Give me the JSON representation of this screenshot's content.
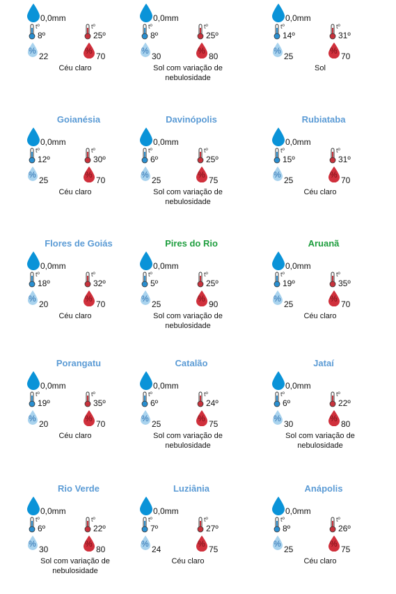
{
  "icons": {
    "temperature": "tº",
    "humidity": "%"
  },
  "cards": [
    {
      "rain": "0,0mm",
      "min_temp": "8º",
      "max_temp": "25º",
      "min_humidity": "22",
      "max_humidity": "70",
      "condition": "Céu claro"
    },
    {
      "rain": "0,0mm",
      "min_temp": "8º",
      "max_temp": "25º",
      "min_humidity": "30",
      "max_humidity": "80",
      "condition": "Sol com variação de nebulosidade"
    },
    {
      "rain": "0,0mm",
      "min_temp": "14º",
      "max_temp": "31º",
      "min_humidity": "25",
      "max_humidity": "70",
      "condition": "Sol"
    },
    {
      "name": "Goianésia",
      "name_color": "#5b9bd5",
      "rain": "0,0mm",
      "min_temp": "12º",
      "max_temp": "30º",
      "min_humidity": "25",
      "max_humidity": "70",
      "condition": "Céu claro"
    },
    {
      "name": "Davinópolis",
      "name_color": "#5b9bd5",
      "rain": "0,0mm",
      "min_temp": "6º",
      "max_temp": "25º",
      "min_humidity": "25",
      "max_humidity": "75",
      "condition": "Sol com variação de nebulosidade"
    },
    {
      "name": "Rubiataba",
      "name_color": "#5b9bd5",
      "rain": "0,0mm",
      "min_temp": "15º",
      "max_temp": "31º",
      "min_humidity": "25",
      "max_humidity": "70",
      "condition": "Céu claro"
    },
    {
      "name": "Flores de Goiás",
      "name_color": "#5b9bd5",
      "rain": "0,0mm",
      "min_temp": "18º",
      "max_temp": "32º",
      "min_humidity": "20",
      "max_humidity": "70",
      "condition": "Céu claro"
    },
    {
      "name": "Pires do Rio",
      "name_color": "#1e9e3e",
      "rain": "0,0mm",
      "min_temp": "5º",
      "max_temp": "25º",
      "min_humidity": "25",
      "max_humidity": "90",
      "condition": "Sol com variação de nebulosidade"
    },
    {
      "name": "Aruanã",
      "name_color": "#1e9e3e",
      "rain": "0,0mm",
      "min_temp": "19º",
      "max_temp": "35º",
      "min_humidity": "25",
      "max_humidity": "70",
      "condition": "Céu claro"
    },
    {
      "name": "Porangatu",
      "name_color": "#5b9bd5",
      "rain": "0,0mm",
      "min_temp": "19º",
      "max_temp": "35º",
      "min_humidity": "20",
      "max_humidity": "70",
      "condition": "Céu claro"
    },
    {
      "name": "Catalão",
      "name_color": "#5b9bd5",
      "rain": "0,0mm",
      "min_temp": "6º",
      "max_temp": "24º",
      "min_humidity": "25",
      "max_humidity": "75",
      "condition": "Sol com variação de nebulosidade"
    },
    {
      "name": "Jataí",
      "name_color": "#5b9bd5",
      "rain": "0,0mm",
      "min_temp": "6º",
      "max_temp": "22º",
      "min_humidity": "30",
      "max_humidity": "80",
      "condition": "Sol com variação de nebulosidade"
    },
    {
      "name": "Rio Verde",
      "name_color": "#5b9bd5",
      "rain": "0,0mm",
      "min_temp": "6º",
      "max_temp": "22º",
      "min_humidity": "30",
      "max_humidity": "80",
      "condition": "Sol com variação de nebulosidade"
    },
    {
      "name": "Luziânia",
      "name_color": "#5b9bd5",
      "rain": "0,0mm",
      "min_temp": "7º",
      "max_temp": "27º",
      "min_humidity": "24",
      "max_humidity": "75",
      "condition": "Céu claro"
    },
    {
      "name": "Anápolis",
      "name_color": "#5b9bd5",
      "rain": "0,0mm",
      "min_temp": "8º",
      "max_temp": "26º",
      "min_humidity": "25",
      "max_humidity": "75",
      "condition": "Céu claro"
    }
  ]
}
